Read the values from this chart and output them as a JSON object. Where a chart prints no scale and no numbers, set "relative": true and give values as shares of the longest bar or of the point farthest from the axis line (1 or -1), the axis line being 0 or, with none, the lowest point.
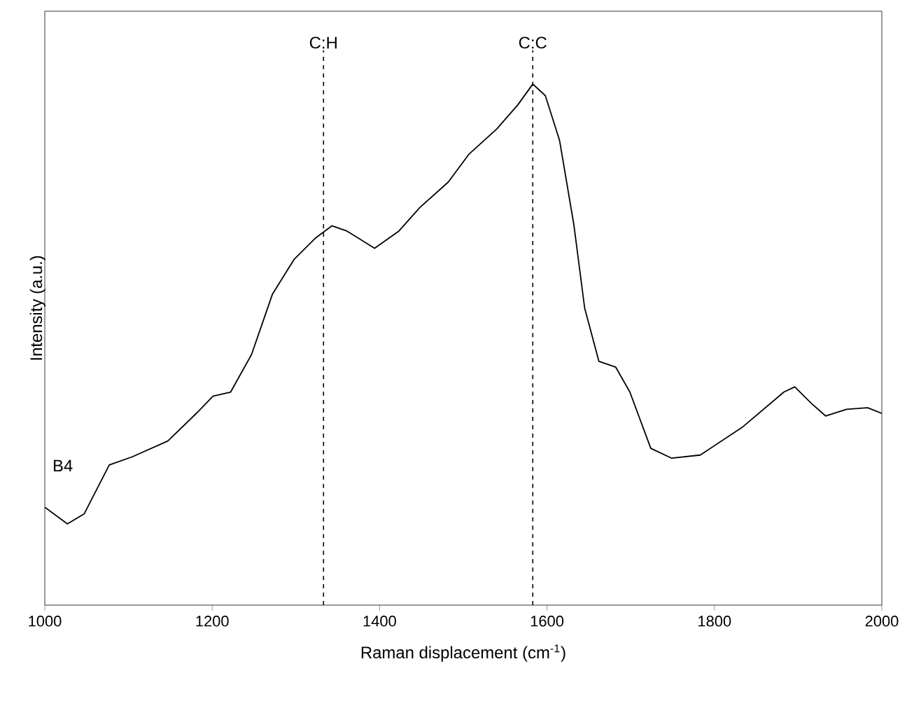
{
  "chart_data": {
    "type": "line",
    "xlabel": "Raman displacement (cm$^{-1}$)",
    "ylabel": "Intensity (a.u.)",
    "relative": true,
    "xlim": [
      1000,
      2000
    ],
    "xticks": [
      1000,
      1200,
      1400,
      1600,
      1800,
      2000
    ],
    "marker": "none",
    "line_style": "solid",
    "x": [
      1000,
      1027,
      1047,
      1077,
      1105,
      1147,
      1181,
      1201,
      1222,
      1247,
      1272,
      1298,
      1323,
      1343,
      1361,
      1394,
      1423,
      1448,
      1482,
      1507,
      1540,
      1565,
      1583,
      1598,
      1615,
      1632,
      1645,
      1662,
      1682,
      1699,
      1724,
      1749,
      1783,
      1833,
      1883,
      1896,
      1916,
      1933,
      1958,
      1983,
      2000
    ],
    "series": [
      {
        "name": "B4",
        "color": "#000000",
        "values": [
          0.188,
          0.156,
          0.175,
          0.269,
          0.285,
          0.315,
          0.368,
          0.401,
          0.409,
          0.481,
          0.597,
          0.664,
          0.704,
          0.728,
          0.718,
          0.685,
          0.718,
          0.763,
          0.812,
          0.866,
          0.914,
          0.96,
          1,
          0.978,
          0.892,
          0.731,
          0.57,
          0.468,
          0.457,
          0.409,
          0.301,
          0.282,
          0.288,
          0.341,
          0.409,
          0.419,
          0.387,
          0.363,
          0.376,
          0.379,
          0.368
        ]
      }
    ],
    "ref_lines": [
      {
        "axis": "x",
        "value": 1333,
        "label": "C:H",
        "line_style": "dashed"
      },
      {
        "axis": "x",
        "value": 1583,
        "label": "C:C",
        "line_style": "dashed"
      }
    ]
  }
}
